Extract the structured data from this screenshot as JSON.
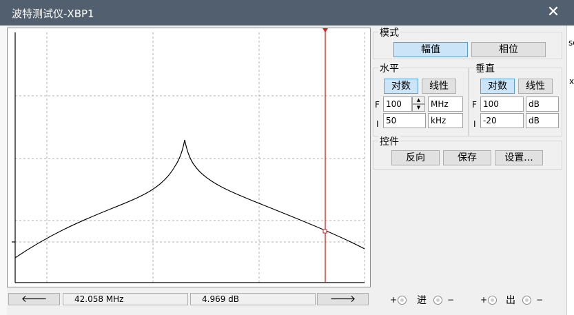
{
  "window": {
    "title": "波特测试仪-XBP1",
    "close_glyph": "✕"
  },
  "mode": {
    "label": "模式",
    "magnitude": "幅值",
    "phase": "相位"
  },
  "horizontal": {
    "label": "水平",
    "log": "对数",
    "linear": "线性",
    "final_prefix": "F",
    "final_value": "100",
    "final_unit": "MHz",
    "initial_prefix": "I",
    "initial_value": "50",
    "initial_unit": "kHz"
  },
  "vertical": {
    "label": "垂直",
    "log": "对数",
    "linear": "线性",
    "final_prefix": "F",
    "final_value": "100",
    "final_unit": "dB",
    "initial_prefix": "I",
    "initial_value": "-20",
    "initial_unit": "dB"
  },
  "controls": {
    "label": "控件",
    "reverse": "反向",
    "save": "保存",
    "settings": "设置..."
  },
  "cursor_bar": {
    "left_arrow": "🡐",
    "right_arrow": "🡒",
    "freq": "42.058 MHz",
    "value": "4.969 dB"
  },
  "terminals": {
    "in_label": "进",
    "out_label": "出",
    "plus": "+",
    "minus": "−"
  },
  "background_fragments": {
    "a": "so",
    "b": "x"
  },
  "colors": {
    "cursor": "#d02020",
    "curve": "#000000",
    "grid": "#b0b0b0",
    "selected_button": "#cce4f7"
  }
}
